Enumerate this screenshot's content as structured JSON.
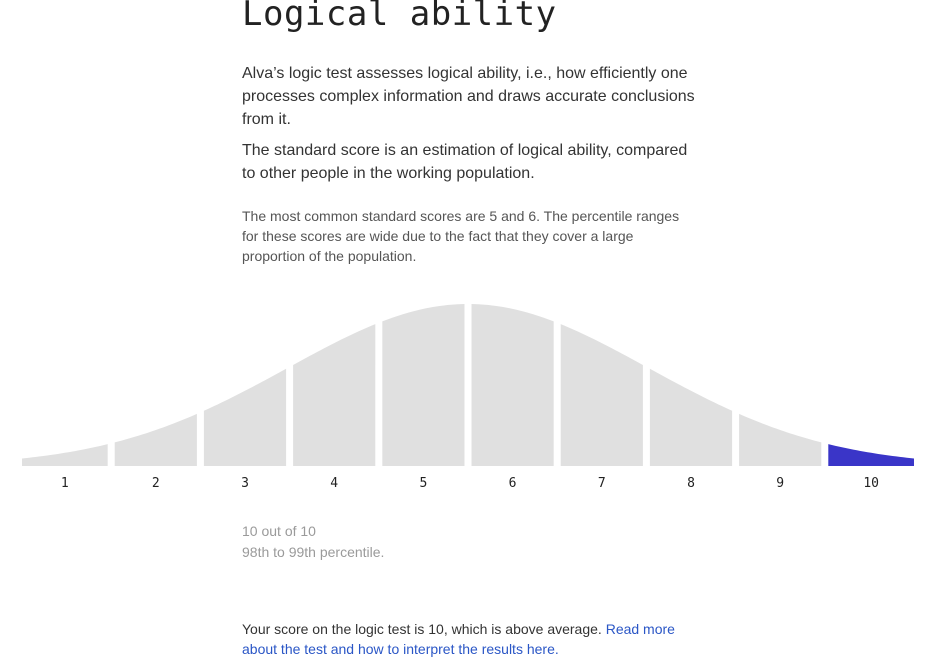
{
  "heading": "Logical ability",
  "intro": "Alva’s logic test assesses logical ability, i.e., how efficiently one processes complex information and draws accurate conclusions from it.",
  "standard_score_text": "The standard score is an estimation of logical ability, compared to other people in the working population.",
  "common_scores_note": "The most common standard scores are 5 and 6. The percentile ranges for these scores are wide due to the fact that they cover a large proportion of the population.",
  "chart_data": {
    "type": "area",
    "categories": [
      "1",
      "2",
      "3",
      "4",
      "5",
      "6",
      "7",
      "8",
      "9",
      "10"
    ],
    "highlighted": "10",
    "colors": {
      "base": "#e0e0e0",
      "highlight": "#3a35c8",
      "label": "#222222"
    }
  },
  "result": {
    "score_text": "10 out of 10",
    "percentile_text": "98th to 99th percentile."
  },
  "summary": {
    "text": "Your score on the logic test is 10, which is above average. ",
    "link_text": "Read more about the test and how to interpret the results here."
  }
}
